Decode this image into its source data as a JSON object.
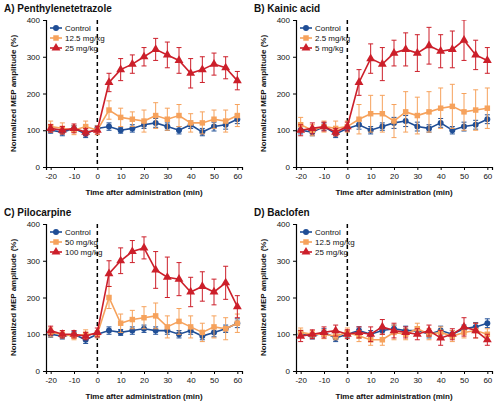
{
  "chart_data": [
    {
      "type": "line",
      "title": "A) Penthylenetetrazole",
      "xlabel": "Time after administration (min)",
      "ylabel": "Normalized MEP amplitude (%)",
      "x": [
        -20,
        -15,
        -10,
        -5,
        0,
        5,
        10,
        15,
        20,
        25,
        30,
        35,
        40,
        45,
        50,
        55,
        60
      ],
      "xlim": [
        -22,
        62
      ],
      "xticks": [
        -20,
        -10,
        0,
        10,
        20,
        30,
        40,
        50,
        60
      ],
      "ylim": [
        0,
        400
      ],
      "yticks": [
        0,
        100,
        200,
        300,
        400
      ],
      "grid": false,
      "legend": "top-left",
      "vline": 0,
      "series": [
        {
          "name": "Control",
          "color": "#1f4e96",
          "marker": "circle",
          "values": [
            100,
            95,
            105,
            90,
            105,
            110,
            100,
            105,
            115,
            120,
            110,
            100,
            115,
            95,
            110,
            115,
            130
          ],
          "errors": [
            8,
            10,
            8,
            10,
            8,
            10,
            8,
            10,
            10,
            12,
            10,
            10,
            10,
            10,
            12,
            12,
            12
          ]
        },
        {
          "name": "12.5 mg/kg",
          "color": "#f6a25c",
          "marker": "square",
          "values": [
            110,
            105,
            100,
            110,
            100,
            155,
            135,
            130,
            125,
            140,
            130,
            140,
            120,
            120,
            130,
            125,
            140
          ],
          "errors": [
            15,
            15,
            12,
            15,
            12,
            25,
            25,
            20,
            30,
            35,
            30,
            30,
            25,
            30,
            25,
            30,
            30
          ]
        },
        {
          "name": "25 mg/kg",
          "color": "#cc1f2a",
          "marker": "triangle",
          "values": [
            105,
            100,
            105,
            95,
            100,
            230,
            265,
            280,
            300,
            320,
            305,
            290,
            255,
            265,
            280,
            270,
            235
          ],
          "errors": [
            10,
            10,
            12,
            10,
            10,
            25,
            30,
            25,
            25,
            30,
            35,
            35,
            40,
            35,
            30,
            30,
            25
          ]
        }
      ]
    },
    {
      "type": "line",
      "title": "B) Kainic acid",
      "xlabel": "Time after administration (min)",
      "ylabel": "Normalized MEP amplitude (%)",
      "x": [
        -20,
        -15,
        -10,
        -5,
        0,
        5,
        10,
        15,
        20,
        25,
        30,
        35,
        40,
        45,
        50,
        55,
        60
      ],
      "xlim": [
        -22,
        62
      ],
      "xticks": [
        -20,
        -10,
        0,
        10,
        20,
        30,
        40,
        50,
        60
      ],
      "ylim": [
        0,
        400
      ],
      "yticks": [
        0,
        100,
        200,
        300,
        400
      ],
      "grid": false,
      "legend": "top-left",
      "vline": 0,
      "series": [
        {
          "name": "Control",
          "color": "#1f4e96",
          "marker": "circle",
          "values": [
            100,
            95,
            110,
            90,
            105,
            115,
            100,
            110,
            120,
            125,
            110,
            105,
            120,
            100,
            110,
            115,
            130
          ],
          "errors": [
            10,
            10,
            10,
            10,
            8,
            12,
            10,
            10,
            15,
            15,
            12,
            10,
            12,
            10,
            12,
            12,
            12
          ]
        },
        {
          "name": "2.5 mg/kg",
          "color": "#f6a25c",
          "marker": "square",
          "values": [
            115,
            100,
            110,
            105,
            110,
            130,
            145,
            145,
            125,
            150,
            140,
            150,
            160,
            165,
            150,
            155,
            160
          ],
          "errors": [
            20,
            15,
            15,
            20,
            15,
            40,
            50,
            50,
            45,
            55,
            50,
            55,
            55,
            60,
            50,
            55,
            55
          ]
        },
        {
          "name": "5 mg/kg",
          "color": "#cc1f2a",
          "marker": "triangle",
          "values": [
            100,
            105,
            110,
            95,
            110,
            230,
            295,
            280,
            310,
            320,
            310,
            330,
            315,
            320,
            345,
            305,
            290
          ],
          "errors": [
            15,
            15,
            12,
            10,
            12,
            35,
            40,
            45,
            35,
            45,
            50,
            50,
            45,
            50,
            55,
            40,
            35
          ]
        }
      ]
    },
    {
      "type": "line",
      "title": "C) Pilocarpine",
      "xlabel": "Time after administration (min)",
      "ylabel": "Normalized MEP amplitude (%)",
      "x": [
        -20,
        -15,
        -10,
        -5,
        0,
        5,
        10,
        15,
        20,
        25,
        30,
        35,
        40,
        45,
        50,
        55,
        60
      ],
      "xlim": [
        -22,
        62
      ],
      "xticks": [
        -20,
        -10,
        0,
        10,
        20,
        30,
        40,
        50,
        60
      ],
      "ylim": [
        0,
        400
      ],
      "yticks": [
        0,
        100,
        200,
        300,
        400
      ],
      "grid": false,
      "legend": "top-right",
      "vline": 0,
      "series": [
        {
          "name": "Control",
          "color": "#1f4e96",
          "marker": "circle",
          "values": [
            100,
            95,
            100,
            85,
            100,
            110,
            105,
            110,
            115,
            110,
            110,
            100,
            110,
            95,
            105,
            115,
            130
          ],
          "errors": [
            8,
            8,
            8,
            10,
            8,
            10,
            8,
            10,
            10,
            10,
            10,
            10,
            10,
            10,
            12,
            10,
            12
          ]
        },
        {
          "name": "50 mg/kg",
          "color": "#f6a25c",
          "marker": "square",
          "values": [
            105,
            100,
            95,
            100,
            100,
            200,
            130,
            140,
            145,
            150,
            120,
            135,
            120,
            105,
            120,
            115,
            130
          ],
          "errors": [
            12,
            10,
            10,
            12,
            10,
            30,
            25,
            25,
            30,
            35,
            30,
            35,
            30,
            25,
            30,
            30,
            25
          ]
        },
        {
          "name": "100 mg/kg",
          "color": "#cc1f2a",
          "marker": "triangle",
          "values": [
            110,
            100,
            100,
            95,
            105,
            265,
            300,
            325,
            335,
            275,
            255,
            250,
            215,
            230,
            215,
            240,
            175
          ],
          "errors": [
            12,
            10,
            10,
            10,
            12,
            35,
            35,
            30,
            30,
            50,
            55,
            45,
            40,
            40,
            35,
            45,
            30
          ]
        }
      ]
    },
    {
      "type": "line",
      "title": "D) Baclofen",
      "xlabel": "Time after administration (min)",
      "ylabel": "Normalized MEP amplitude (%)",
      "x": [
        -20,
        -15,
        -10,
        -5,
        0,
        5,
        10,
        15,
        20,
        25,
        30,
        35,
        40,
        45,
        50,
        55,
        60
      ],
      "xlim": [
        -22,
        62
      ],
      "xticks": [
        -20,
        -10,
        0,
        10,
        20,
        30,
        40,
        50,
        60
      ],
      "ylim": [
        0,
        400
      ],
      "yticks": [
        0,
        100,
        200,
        300,
        400
      ],
      "grid": false,
      "legend": "top-right",
      "vline": 0,
      "series": [
        {
          "name": "Control",
          "color": "#1f4e96",
          "marker": "circle",
          "values": [
            100,
            95,
            105,
            90,
            100,
            110,
            100,
            110,
            115,
            110,
            110,
            100,
            110,
            100,
            115,
            120,
            130
          ],
          "errors": [
            8,
            8,
            10,
            10,
            8,
            10,
            10,
            10,
            10,
            12,
            10,
            10,
            12,
            10,
            10,
            12,
            12
          ]
        },
        {
          "name": "12.5 mg/kg",
          "color": "#f6a25c",
          "marker": "square",
          "values": [
            105,
            100,
            100,
            95,
            105,
            95,
            85,
            85,
            105,
            100,
            115,
            100,
            105,
            95,
            105,
            110,
            100
          ],
          "errors": [
            12,
            10,
            12,
            10,
            12,
            15,
            15,
            15,
            20,
            15,
            15,
            15,
            15,
            15,
            15,
            20,
            15
          ]
        },
        {
          "name": "25 mg/kg",
          "color": "#cc1f2a",
          "marker": "triangle",
          "values": [
            95,
            100,
            105,
            110,
            100,
            105,
            100,
            120,
            110,
            105,
            100,
            110,
            90,
            100,
            120,
            110,
            85
          ],
          "errors": [
            15,
            12,
            15,
            15,
            12,
            15,
            20,
            20,
            20,
            15,
            15,
            15,
            20,
            15,
            25,
            20,
            15
          ]
        }
      ]
    }
  ]
}
